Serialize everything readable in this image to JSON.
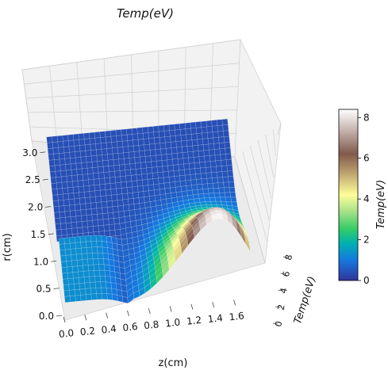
{
  "chart_data": {
    "type": "surface",
    "title": "Temp(eV)",
    "xlabel": "z(cm)",
    "ylabel": "r(cm)",
    "zlabel": "Temp(eV)",
    "x_ticks": [
      "0.0",
      "0.2",
      "0.4",
      "0.6",
      "0.8",
      "1.0",
      "1.2",
      "1.4",
      "1.6"
    ],
    "y_ticks": [
      "0.0",
      "0.5",
      "1.0",
      "1.5",
      "2.0",
      "2.5",
      "3.0"
    ],
    "z_ticks": [
      "0",
      "2",
      "4",
      "6",
      "8"
    ],
    "xlim": [
      0.0,
      1.7
    ],
    "ylim": [
      0.0,
      3.2
    ],
    "zlim": [
      0,
      8.4
    ],
    "colorbar": {
      "label": "Temp(eV)",
      "ticks": [
        "0",
        "2",
        "4",
        "6",
        "8"
      ],
      "range": [
        0,
        8.4
      ],
      "colormap": "terrain"
    },
    "surface": {
      "background_temp": 0.4,
      "peak_temp": 8.3,
      "peak_z": 1.36,
      "peak_r": 1.2,
      "hot_region_z_start": 0.8,
      "hot_region_r_radius": 1.1,
      "low_r_plateau_temp": 1.3,
      "low_r_plateau_r": 1.2
    }
  }
}
